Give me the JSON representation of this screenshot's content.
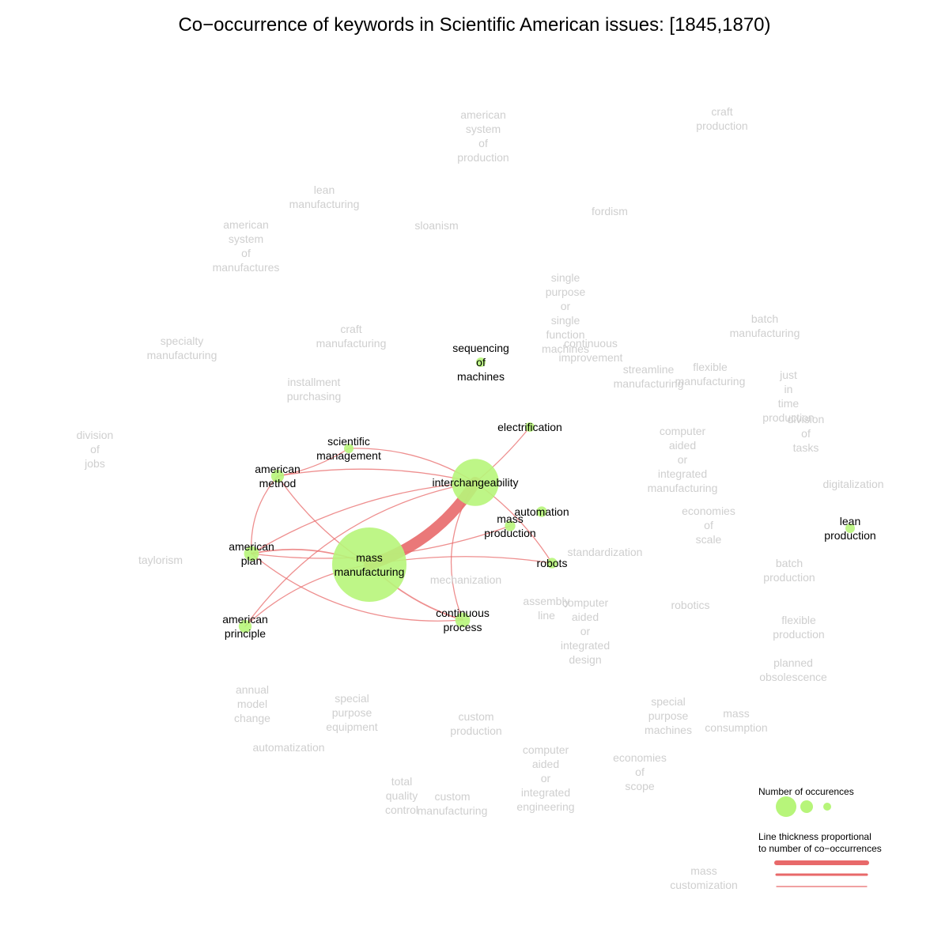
{
  "title": "Co−occurrence of keywords in Scientific American issues: [1845,1870)",
  "colors": {
    "node_fill": "#b7f57a",
    "edge": "#e8696a",
    "active_label": "#000000",
    "inactive_label": "#cfcfcf"
  },
  "legend": {
    "size_title": "Number of occurences",
    "line_title_1": "Line thickness proportional",
    "line_title_2": "to number of co−occurrences"
  },
  "nodes": [
    {
      "id": "mass_manufacturing",
      "lines": [
        "mass",
        "manufacturing"
      ],
      "count": 100,
      "active": true
    },
    {
      "id": "interchangeability",
      "lines": [
        "interchangeability"
      ],
      "count": 40,
      "active": true
    },
    {
      "id": "continuous_process",
      "lines": [
        "continuous",
        "process"
      ],
      "count": 4,
      "active": true
    },
    {
      "id": "american_plan",
      "lines": [
        "american",
        "plan"
      ],
      "count": 4,
      "active": true
    },
    {
      "id": "american_principle",
      "lines": [
        "american",
        "principle"
      ],
      "count": 3,
      "active": true
    },
    {
      "id": "american_method",
      "lines": [
        "american",
        "method"
      ],
      "count": 3,
      "active": true
    },
    {
      "id": "mass_production",
      "lines": [
        "mass",
        "production"
      ],
      "count": 2,
      "active": true
    },
    {
      "id": "automation",
      "lines": [
        "automation"
      ],
      "count": 2,
      "active": true
    },
    {
      "id": "robots",
      "lines": [
        "robots"
      ],
      "count": 2,
      "active": true
    },
    {
      "id": "scientific_management",
      "lines": [
        "scientific",
        "management"
      ],
      "count": 1,
      "active": true
    },
    {
      "id": "electrification",
      "lines": [
        "electrification"
      ],
      "count": 1,
      "active": true
    },
    {
      "id": "sequencing_of_machines",
      "lines": [
        "sequencing",
        "of",
        "machines"
      ],
      "count": 1,
      "active": true
    },
    {
      "id": "lean_production",
      "lines": [
        "lean",
        "production"
      ],
      "count": 1,
      "active": true
    },
    {
      "id": "american_system_of_production",
      "lines": [
        "american",
        "system",
        "of",
        "production"
      ],
      "count": 0,
      "active": false
    },
    {
      "id": "craft_production",
      "lines": [
        "craft",
        "production"
      ],
      "count": 0,
      "active": false
    },
    {
      "id": "lean_manufacturing",
      "lines": [
        "lean",
        "manufacturing"
      ],
      "count": 0,
      "active": false
    },
    {
      "id": "sloanism",
      "lines": [
        "sloanism"
      ],
      "count": 0,
      "active": false
    },
    {
      "id": "fordism",
      "lines": [
        "fordism"
      ],
      "count": 0,
      "active": false
    },
    {
      "id": "american_system_of_manufactures",
      "lines": [
        "american",
        "system",
        "of",
        "manufactures"
      ],
      "count": 0,
      "active": false
    },
    {
      "id": "single_purpose",
      "lines": [
        "single",
        "purpose",
        "or",
        "single",
        "function",
        "machines"
      ],
      "count": 0,
      "active": false
    },
    {
      "id": "specialty_manufacturing",
      "lines": [
        "specialty",
        "manufacturing"
      ],
      "count": 0,
      "active": false
    },
    {
      "id": "craft_manufacturing",
      "lines": [
        "craft",
        "manufacturing"
      ],
      "count": 0,
      "active": false
    },
    {
      "id": "continuous_improvement",
      "lines": [
        "continuous",
        "improvement"
      ],
      "count": 0,
      "active": false
    },
    {
      "id": "batch_manufacturing",
      "lines": [
        "batch",
        "manufacturing"
      ],
      "count": 0,
      "active": false
    },
    {
      "id": "installment_purchasing",
      "lines": [
        "installment",
        "purchasing"
      ],
      "count": 0,
      "active": false
    },
    {
      "id": "streamline_manufacturing",
      "lines": [
        "streamline",
        "manufacturing"
      ],
      "count": 0,
      "active": false
    },
    {
      "id": "flexible_manufacturing",
      "lines": [
        "flexible",
        "manufacturing"
      ],
      "count": 0,
      "active": false
    },
    {
      "id": "just_in_time",
      "lines": [
        "just",
        "in",
        "time",
        "production"
      ],
      "count": 0,
      "active": false
    },
    {
      "id": "division_of_tasks",
      "lines": [
        "division",
        "of",
        "tasks"
      ],
      "count": 0,
      "active": false
    },
    {
      "id": "division_of_jobs",
      "lines": [
        "division",
        "of",
        "jobs"
      ],
      "count": 0,
      "active": false
    },
    {
      "id": "cai_manufacturing",
      "lines": [
        "computer",
        "aided",
        "or",
        "integrated",
        "manufacturing"
      ],
      "count": 0,
      "active": false
    },
    {
      "id": "digitalization",
      "lines": [
        "digitalization"
      ],
      "count": 0,
      "active": false
    },
    {
      "id": "economies_of_scale",
      "lines": [
        "economies",
        "of",
        "scale"
      ],
      "count": 0,
      "active": false
    },
    {
      "id": "taylorism",
      "lines": [
        "taylorism"
      ],
      "count": 0,
      "active": false
    },
    {
      "id": "standardization",
      "lines": [
        "standardization"
      ],
      "count": 0,
      "active": false
    },
    {
      "id": "batch_production",
      "lines": [
        "batch",
        "production"
      ],
      "count": 0,
      "active": false
    },
    {
      "id": "mechanization",
      "lines": [
        "mechanization"
      ],
      "count": 0,
      "active": false
    },
    {
      "id": "assembly_line",
      "lines": [
        "assembly",
        "line"
      ],
      "count": 0,
      "active": false
    },
    {
      "id": "cai_design",
      "lines": [
        "computer",
        "aided",
        "or",
        "integrated",
        "design"
      ],
      "count": 0,
      "active": false
    },
    {
      "id": "robotics",
      "lines": [
        "robotics"
      ],
      "count": 0,
      "active": false
    },
    {
      "id": "flexible_production",
      "lines": [
        "flexible",
        "production"
      ],
      "count": 0,
      "active": false
    },
    {
      "id": "planned_obsolescence",
      "lines": [
        "planned",
        "obsolescence"
      ],
      "count": 0,
      "active": false
    },
    {
      "id": "annual_model_change",
      "lines": [
        "annual",
        "model",
        "change"
      ],
      "count": 0,
      "active": false
    },
    {
      "id": "special_purpose_equipment",
      "lines": [
        "special",
        "purpose",
        "equipment"
      ],
      "count": 0,
      "active": false
    },
    {
      "id": "custom_production",
      "lines": [
        "custom",
        "production"
      ],
      "count": 0,
      "active": false
    },
    {
      "id": "special_purpose_machines",
      "lines": [
        "special",
        "purpose",
        "machines"
      ],
      "count": 0,
      "active": false
    },
    {
      "id": "mass_consumption",
      "lines": [
        "mass",
        "consumption"
      ],
      "count": 0,
      "active": false
    },
    {
      "id": "automatization",
      "lines": [
        "automatization"
      ],
      "count": 0,
      "active": false
    },
    {
      "id": "cai_engineering",
      "lines": [
        "computer",
        "aided",
        "or",
        "integrated",
        "engineering"
      ],
      "count": 0,
      "active": false
    },
    {
      "id": "economies_of_scope",
      "lines": [
        "economies",
        "of",
        "scope"
      ],
      "count": 0,
      "active": false
    },
    {
      "id": "total_quality_control",
      "lines": [
        "total",
        "quality",
        "control"
      ],
      "count": 0,
      "active": false
    },
    {
      "id": "custom_manufacturing",
      "lines": [
        "custom",
        "manufacturing"
      ],
      "count": 0,
      "active": false
    },
    {
      "id": "mass_customization",
      "lines": [
        "mass",
        "customization"
      ],
      "count": 0,
      "active": false
    }
  ],
  "edges": [
    {
      "source": "mass_manufacturing",
      "target": "interchangeability",
      "weight": 12
    },
    {
      "source": "mass_manufacturing",
      "target": "continuous_process",
      "weight": 2
    },
    {
      "source": "mass_manufacturing",
      "target": "american_plan",
      "weight": 2
    },
    {
      "source": "interchangeability",
      "target": "american_plan",
      "weight": 1
    },
    {
      "source": "interchangeability",
      "target": "continuous_process",
      "weight": 1
    },
    {
      "source": "interchangeability",
      "target": "american_method",
      "weight": 1
    },
    {
      "source": "interchangeability",
      "target": "robots",
      "weight": 1
    },
    {
      "source": "interchangeability",
      "target": "electrification",
      "weight": 1
    },
    {
      "source": "interchangeability",
      "target": "american_principle",
      "weight": 1
    },
    {
      "source": "mass_manufacturing",
      "target": "american_principle",
      "weight": 1
    },
    {
      "source": "mass_manufacturing",
      "target": "american_method",
      "weight": 1
    },
    {
      "source": "mass_manufacturing",
      "target": "robots",
      "weight": 1
    },
    {
      "source": "american_method",
      "target": "american_plan",
      "weight": 1
    },
    {
      "source": "american_method",
      "target": "scientific_management",
      "weight": 1
    },
    {
      "source": "scientific_management",
      "target": "interchangeability",
      "weight": 1
    },
    {
      "source": "american_plan",
      "target": "mass_production",
      "weight": 1
    },
    {
      "source": "american_plan",
      "target": "continuous_process",
      "weight": 1
    }
  ]
}
